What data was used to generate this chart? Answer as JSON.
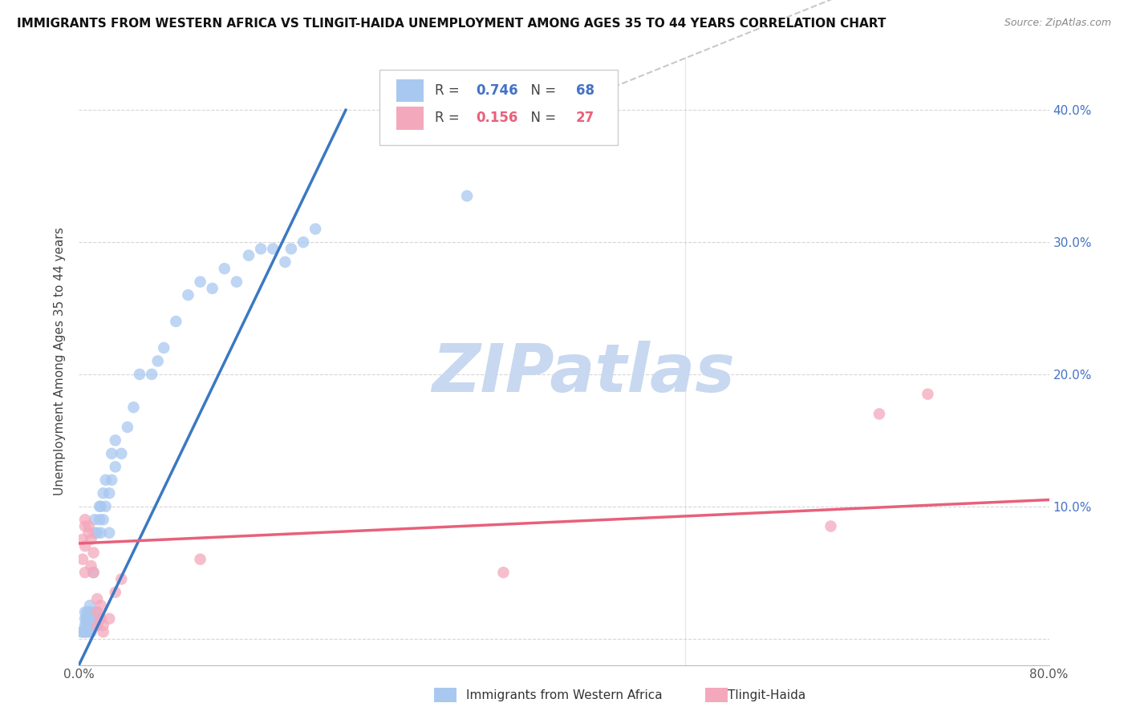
{
  "title": "IMMIGRANTS FROM WESTERN AFRICA VS TLINGIT-HAIDA UNEMPLOYMENT AMONG AGES 35 TO 44 YEARS CORRELATION CHART",
  "source": "Source: ZipAtlas.com",
  "ylabel": "Unemployment Among Ages 35 to 44 years",
  "xlim": [
    0.0,
    0.8
  ],
  "ylim": [
    -0.02,
    0.44
  ],
  "xticks": [
    0.0,
    0.1,
    0.2,
    0.3,
    0.4,
    0.5,
    0.6,
    0.7,
    0.8
  ],
  "yticks": [
    0.0,
    0.1,
    0.2,
    0.3,
    0.4
  ],
  "R_blue": 0.746,
  "N_blue": 68,
  "R_pink": 0.156,
  "N_pink": 27,
  "blue_color": "#A8C8F0",
  "pink_color": "#F4A8BC",
  "blue_line_color": "#3B78C3",
  "pink_line_color": "#E8607A",
  "ref_line_color": "#BBBBBB",
  "grid_color": "#CCCCCC",
  "watermark_color": "#C8D8F0",
  "blue_scatter": [
    [
      0.002,
      0.005
    ],
    [
      0.003,
      0.005
    ],
    [
      0.004,
      0.005
    ],
    [
      0.005,
      0.005
    ],
    [
      0.005,
      0.01
    ],
    [
      0.005,
      0.015
    ],
    [
      0.005,
      0.02
    ],
    [
      0.006,
      0.005
    ],
    [
      0.006,
      0.01
    ],
    [
      0.006,
      0.015
    ],
    [
      0.007,
      0.01
    ],
    [
      0.007,
      0.015
    ],
    [
      0.007,
      0.02
    ],
    [
      0.008,
      0.005
    ],
    [
      0.008,
      0.01
    ],
    [
      0.008,
      0.02
    ],
    [
      0.009,
      0.01
    ],
    [
      0.009,
      0.015
    ],
    [
      0.009,
      0.025
    ],
    [
      0.01,
      0.005
    ],
    [
      0.01,
      0.01
    ],
    [
      0.01,
      0.015
    ],
    [
      0.01,
      0.02
    ],
    [
      0.012,
      0.01
    ],
    [
      0.012,
      0.015
    ],
    [
      0.012,
      0.05
    ],
    [
      0.013,
      0.01
    ],
    [
      0.013,
      0.08
    ],
    [
      0.013,
      0.09
    ],
    [
      0.015,
      0.01
    ],
    [
      0.015,
      0.02
    ],
    [
      0.015,
      0.08
    ],
    [
      0.017,
      0.015
    ],
    [
      0.017,
      0.09
    ],
    [
      0.017,
      0.1
    ],
    [
      0.018,
      0.08
    ],
    [
      0.018,
      0.1
    ],
    [
      0.02,
      0.09
    ],
    [
      0.02,
      0.11
    ],
    [
      0.022,
      0.1
    ],
    [
      0.022,
      0.12
    ],
    [
      0.025,
      0.08
    ],
    [
      0.025,
      0.11
    ],
    [
      0.027,
      0.12
    ],
    [
      0.027,
      0.14
    ],
    [
      0.03,
      0.13
    ],
    [
      0.03,
      0.15
    ],
    [
      0.035,
      0.14
    ],
    [
      0.04,
      0.16
    ],
    [
      0.045,
      0.175
    ],
    [
      0.05,
      0.2
    ],
    [
      0.06,
      0.2
    ],
    [
      0.065,
      0.21
    ],
    [
      0.07,
      0.22
    ],
    [
      0.08,
      0.24
    ],
    [
      0.09,
      0.26
    ],
    [
      0.1,
      0.27
    ],
    [
      0.11,
      0.265
    ],
    [
      0.12,
      0.28
    ],
    [
      0.13,
      0.27
    ],
    [
      0.14,
      0.29
    ],
    [
      0.15,
      0.295
    ],
    [
      0.16,
      0.295
    ],
    [
      0.17,
      0.285
    ],
    [
      0.175,
      0.295
    ],
    [
      0.185,
      0.3
    ],
    [
      0.195,
      0.31
    ],
    [
      0.32,
      0.335
    ]
  ],
  "pink_scatter": [
    [
      0.003,
      0.06
    ],
    [
      0.003,
      0.075
    ],
    [
      0.005,
      0.05
    ],
    [
      0.005,
      0.07
    ],
    [
      0.005,
      0.085
    ],
    [
      0.005,
      0.09
    ],
    [
      0.008,
      0.08
    ],
    [
      0.008,
      0.085
    ],
    [
      0.01,
      0.055
    ],
    [
      0.01,
      0.075
    ],
    [
      0.012,
      0.05
    ],
    [
      0.012,
      0.065
    ],
    [
      0.015,
      0.01
    ],
    [
      0.015,
      0.02
    ],
    [
      0.015,
      0.03
    ],
    [
      0.018,
      0.015
    ],
    [
      0.018,
      0.025
    ],
    [
      0.02,
      0.005
    ],
    [
      0.02,
      0.01
    ],
    [
      0.025,
      0.015
    ],
    [
      0.03,
      0.035
    ],
    [
      0.035,
      0.045
    ],
    [
      0.1,
      0.06
    ],
    [
      0.35,
      0.05
    ],
    [
      0.62,
      0.085
    ],
    [
      0.66,
      0.17
    ],
    [
      0.7,
      0.185
    ]
  ]
}
